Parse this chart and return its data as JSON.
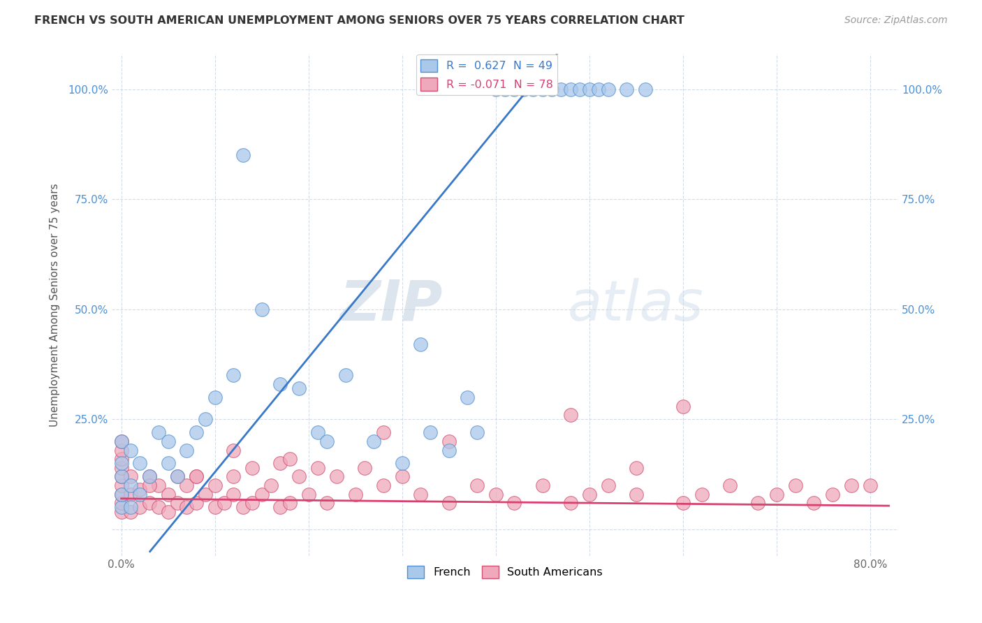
{
  "title": "FRENCH VS SOUTH AMERICAN UNEMPLOYMENT AMONG SENIORS OVER 75 YEARS CORRELATION CHART",
  "source": "Source: ZipAtlas.com",
  "ylabel": "Unemployment Among Seniors over 75 years",
  "x_ticks": [
    0.0,
    0.1,
    0.2,
    0.3,
    0.4,
    0.5,
    0.6,
    0.7,
    0.8
  ],
  "x_tick_labels": [
    "0.0%",
    "",
    "",
    "",
    "",
    "",
    "",
    "",
    "80.0%"
  ],
  "y_ticks": [
    0.0,
    0.25,
    0.5,
    0.75,
    1.0
  ],
  "y_tick_labels": [
    "",
    "25.0%",
    "50.0%",
    "75.0%",
    "100.0%"
  ],
  "xlim": [
    -0.01,
    0.83
  ],
  "ylim": [
    -0.06,
    1.08
  ],
  "french_color": "#aac8ea",
  "french_edge_color": "#5090d0",
  "south_american_color": "#f0a8bc",
  "south_american_edge_color": "#d05070",
  "french_line_color": "#3878c8",
  "south_american_line_color": "#d84070",
  "legend_french_label": "R =  0.627  N = 49",
  "legend_south_label": "R = -0.071  N = 78",
  "watermark_zip": "ZIP",
  "watermark_atlas": "atlas",
  "background_color": "#ffffff",
  "grid_color": "#c8d4e0",
  "french_x": [
    0.0,
    0.0,
    0.0,
    0.0,
    0.0,
    0.01,
    0.01,
    0.01,
    0.02,
    0.02,
    0.03,
    0.04,
    0.05,
    0.05,
    0.06,
    0.07,
    0.08,
    0.09,
    0.1,
    0.12,
    0.13,
    0.15,
    0.17,
    0.19,
    0.21,
    0.22,
    0.24,
    0.27,
    0.3,
    0.32,
    0.33,
    0.35,
    0.37,
    0.38,
    0.4,
    0.41,
    0.42,
    0.43,
    0.44,
    0.45,
    0.46,
    0.47,
    0.48,
    0.49,
    0.5,
    0.51,
    0.52,
    0.54,
    0.56
  ],
  "french_y": [
    0.05,
    0.08,
    0.12,
    0.15,
    0.2,
    0.05,
    0.1,
    0.18,
    0.08,
    0.15,
    0.12,
    0.22,
    0.15,
    0.2,
    0.12,
    0.18,
    0.22,
    0.25,
    0.3,
    0.35,
    0.85,
    0.5,
    0.33,
    0.32,
    0.22,
    0.2,
    0.35,
    0.2,
    0.15,
    0.42,
    0.22,
    0.18,
    0.3,
    0.22,
    1.0,
    1.0,
    1.0,
    1.0,
    1.0,
    1.0,
    1.0,
    1.0,
    1.0,
    1.0,
    1.0,
    1.0,
    1.0,
    1.0,
    1.0
  ],
  "south_american_x": [
    0.0,
    0.0,
    0.0,
    0.0,
    0.0,
    0.0,
    0.0,
    0.0,
    0.0,
    0.01,
    0.01,
    0.01,
    0.02,
    0.02,
    0.03,
    0.03,
    0.04,
    0.04,
    0.05,
    0.05,
    0.06,
    0.06,
    0.07,
    0.07,
    0.08,
    0.08,
    0.09,
    0.1,
    0.1,
    0.11,
    0.12,
    0.12,
    0.13,
    0.14,
    0.14,
    0.15,
    0.16,
    0.17,
    0.17,
    0.18,
    0.19,
    0.2,
    0.21,
    0.22,
    0.23,
    0.25,
    0.26,
    0.28,
    0.3,
    0.32,
    0.35,
    0.38,
    0.4,
    0.42,
    0.45,
    0.48,
    0.5,
    0.52,
    0.55,
    0.6,
    0.62,
    0.65,
    0.68,
    0.7,
    0.72,
    0.74,
    0.76,
    0.78,
    0.8,
    0.6,
    0.55,
    0.48,
    0.35,
    0.28,
    0.18,
    0.12,
    0.08,
    0.03
  ],
  "south_american_y": [
    0.04,
    0.06,
    0.08,
    0.1,
    0.12,
    0.14,
    0.16,
    0.18,
    0.2,
    0.04,
    0.08,
    0.12,
    0.05,
    0.09,
    0.06,
    0.12,
    0.05,
    0.1,
    0.04,
    0.08,
    0.06,
    0.12,
    0.05,
    0.1,
    0.06,
    0.12,
    0.08,
    0.05,
    0.1,
    0.06,
    0.08,
    0.12,
    0.05,
    0.06,
    0.14,
    0.08,
    0.1,
    0.05,
    0.15,
    0.06,
    0.12,
    0.08,
    0.14,
    0.06,
    0.12,
    0.08,
    0.14,
    0.1,
    0.12,
    0.08,
    0.06,
    0.1,
    0.08,
    0.06,
    0.1,
    0.06,
    0.08,
    0.1,
    0.08,
    0.06,
    0.08,
    0.1,
    0.06,
    0.08,
    0.1,
    0.06,
    0.08,
    0.1,
    0.1,
    0.28,
    0.14,
    0.26,
    0.2,
    0.22,
    0.16,
    0.18,
    0.12,
    0.1
  ]
}
